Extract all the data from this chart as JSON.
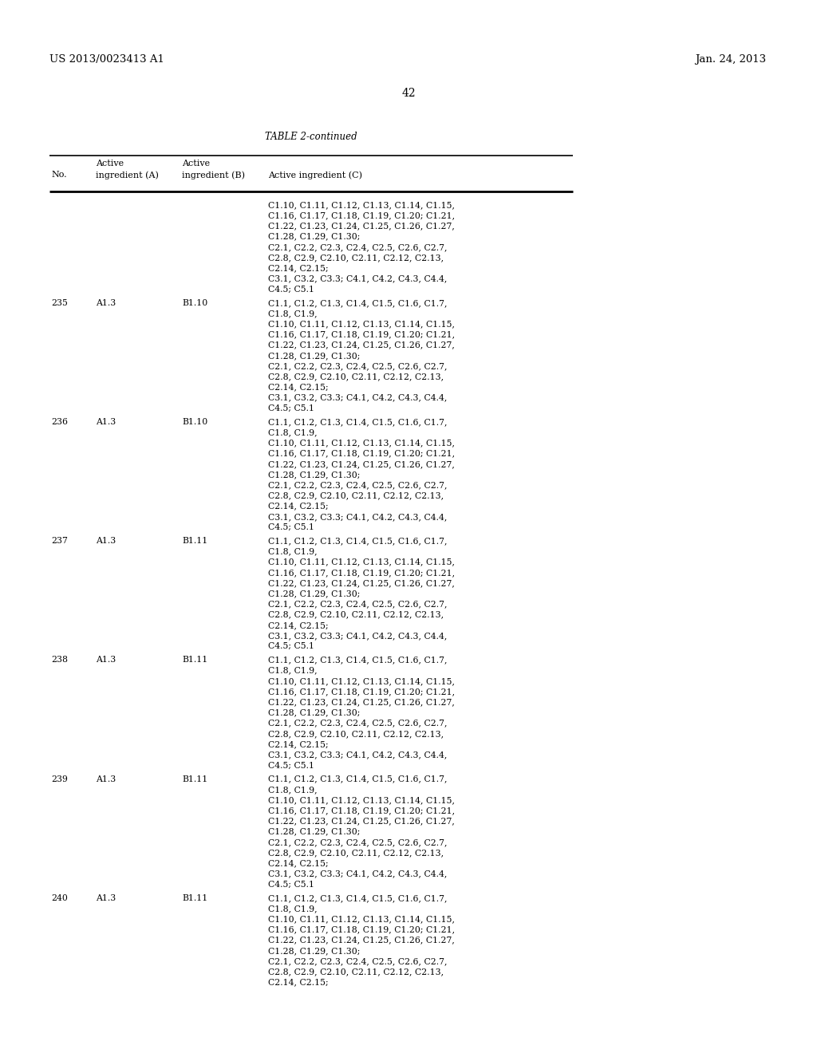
{
  "patent_number": "US 2013/0023413 A1",
  "patent_date": "Jan. 24, 2013",
  "page_number": "42",
  "table_title": "TABLE 2-continued",
  "background_color": "#ffffff",
  "text_color": "#000000",
  "rows": [
    {
      "no": "",
      "a": "",
      "b": "",
      "c": [
        "C1.10, C1.11, C1.12, C1.13, C1.14, C1.15,",
        "C1.16, C1.17, C1.18, C1.19, C1.20; C1.21,",
        "C1.22, C1.23, C1.24, C1.25, C1.26, C1.27,",
        "C1.28, C1.29, C1.30;",
        "C2.1, C2.2, C2.3, C2.4, C2.5, C2.6, C2.7,",
        "C2.8, C2.9, C2.10, C2.11, C2.12, C2.13,",
        "C2.14, C2.15;",
        "C3.1, C3.2, C3.3; C4.1, C4.2, C4.3, C4.4,",
        "C4.5; C5.1"
      ]
    },
    {
      "no": "235",
      "a": "A1.3",
      "b": "B1.10",
      "c": [
        "C1.1, C1.2, C1.3, C1.4, C1.5, C1.6, C1.7,",
        "C1.8, C1.9,",
        "C1.10, C1.11, C1.12, C1.13, C1.14, C1.15,",
        "C1.16, C1.17, C1.18, C1.19, C1.20; C1.21,",
        "C1.22, C1.23, C1.24, C1.25, C1.26, C1.27,",
        "C1.28, C1.29, C1.30;",
        "C2.1, C2.2, C2.3, C2.4, C2.5, C2.6, C2.7,",
        "C2.8, C2.9, C2.10, C2.11, C2.12, C2.13,",
        "C2.14, C2.15;",
        "C3.1, C3.2, C3.3; C4.1, C4.2, C4.3, C4.4,",
        "C4.5; C5.1"
      ]
    },
    {
      "no": "236",
      "a": "A1.3",
      "b": "B1.10",
      "c": [
        "C1.1, C1.2, C1.3, C1.4, C1.5, C1.6, C1.7,",
        "C1.8, C1.9,",
        "C1.10, C1.11, C1.12, C1.13, C1.14, C1.15,",
        "C1.16, C1.17, C1.18, C1.19, C1.20; C1.21,",
        "C1.22, C1.23, C1.24, C1.25, C1.26, C1.27,",
        "C1.28, C1.29, C1.30;",
        "C2.1, C2.2, C2.3, C2.4, C2.5, C2.6, C2.7,",
        "C2.8, C2.9, C2.10, C2.11, C2.12, C2.13,",
        "C2.14, C2.15;",
        "C3.1, C3.2, C3.3; C4.1, C4.2, C4.3, C4.4,",
        "C4.5; C5.1"
      ]
    },
    {
      "no": "237",
      "a": "A1.3",
      "b": "B1.11",
      "c": [
        "C1.1, C1.2, C1.3, C1.4, C1.5, C1.6, C1.7,",
        "C1.8, C1.9,",
        "C1.10, C1.11, C1.12, C1.13, C1.14, C1.15,",
        "C1.16, C1.17, C1.18, C1.19, C1.20; C1.21,",
        "C1.22, C1.23, C1.24, C1.25, C1.26, C1.27,",
        "C1.28, C1.29, C1.30;",
        "C2.1, C2.2, C2.3, C2.4, C2.5, C2.6, C2.7,",
        "C2.8, C2.9, C2.10, C2.11, C2.12, C2.13,",
        "C2.14, C2.15;",
        "C3.1, C3.2, C3.3; C4.1, C4.2, C4.3, C4.4,",
        "C4.5; C5.1"
      ]
    },
    {
      "no": "238",
      "a": "A1.3",
      "b": "B1.11",
      "c": [
        "C1.1, C1.2, C1.3, C1.4, C1.5, C1.6, C1.7,",
        "C1.8, C1.9,",
        "C1.10, C1.11, C1.12, C1.13, C1.14, C1.15,",
        "C1.16, C1.17, C1.18, C1.19, C1.20; C1.21,",
        "C1.22, C1.23, C1.24, C1.25, C1.26, C1.27,",
        "C1.28, C1.29, C1.30;",
        "C2.1, C2.2, C2.3, C2.4, C2.5, C2.6, C2.7,",
        "C2.8, C2.9, C2.10, C2.11, C2.12, C2.13,",
        "C2.14, C2.15;",
        "C3.1, C3.2, C3.3; C4.1, C4.2, C4.3, C4.4,",
        "C4.5; C5.1"
      ]
    },
    {
      "no": "239",
      "a": "A1.3",
      "b": "B1.11",
      "c": [
        "C1.1, C1.2, C1.3, C1.4, C1.5, C1.6, C1.7,",
        "C1.8, C1.9,",
        "C1.10, C1.11, C1.12, C1.13, C1.14, C1.15,",
        "C1.16, C1.17, C1.18, C1.19, C1.20; C1.21,",
        "C1.22, C1.23, C1.24, C1.25, C1.26, C1.27,",
        "C1.28, C1.29, C1.30;",
        "C2.1, C2.2, C2.3, C2.4, C2.5, C2.6, C2.7,",
        "C2.8, C2.9, C2.10, C2.11, C2.12, C2.13,",
        "C2.14, C2.15;",
        "C3.1, C3.2, C3.3; C4.1, C4.2, C4.3, C4.4,",
        "C4.5; C5.1"
      ]
    },
    {
      "no": "240",
      "a": "A1.3",
      "b": "B1.11",
      "c": [
        "C1.1, C1.2, C1.3, C1.4, C1.5, C1.6, C1.7,",
        "C1.8, C1.9,",
        "C1.10, C1.11, C1.12, C1.13, C1.14, C1.15,",
        "C1.16, C1.17, C1.18, C1.19, C1.20; C1.21,",
        "C1.22, C1.23, C1.24, C1.25, C1.26, C1.27,",
        "C1.28, C1.29, C1.30;",
        "C2.1, C2.2, C2.3, C2.4, C2.5, C2.6, C2.7,",
        "C2.8, C2.9, C2.10, C2.11, C2.12, C2.13,",
        "C2.14, C2.15;"
      ]
    }
  ]
}
